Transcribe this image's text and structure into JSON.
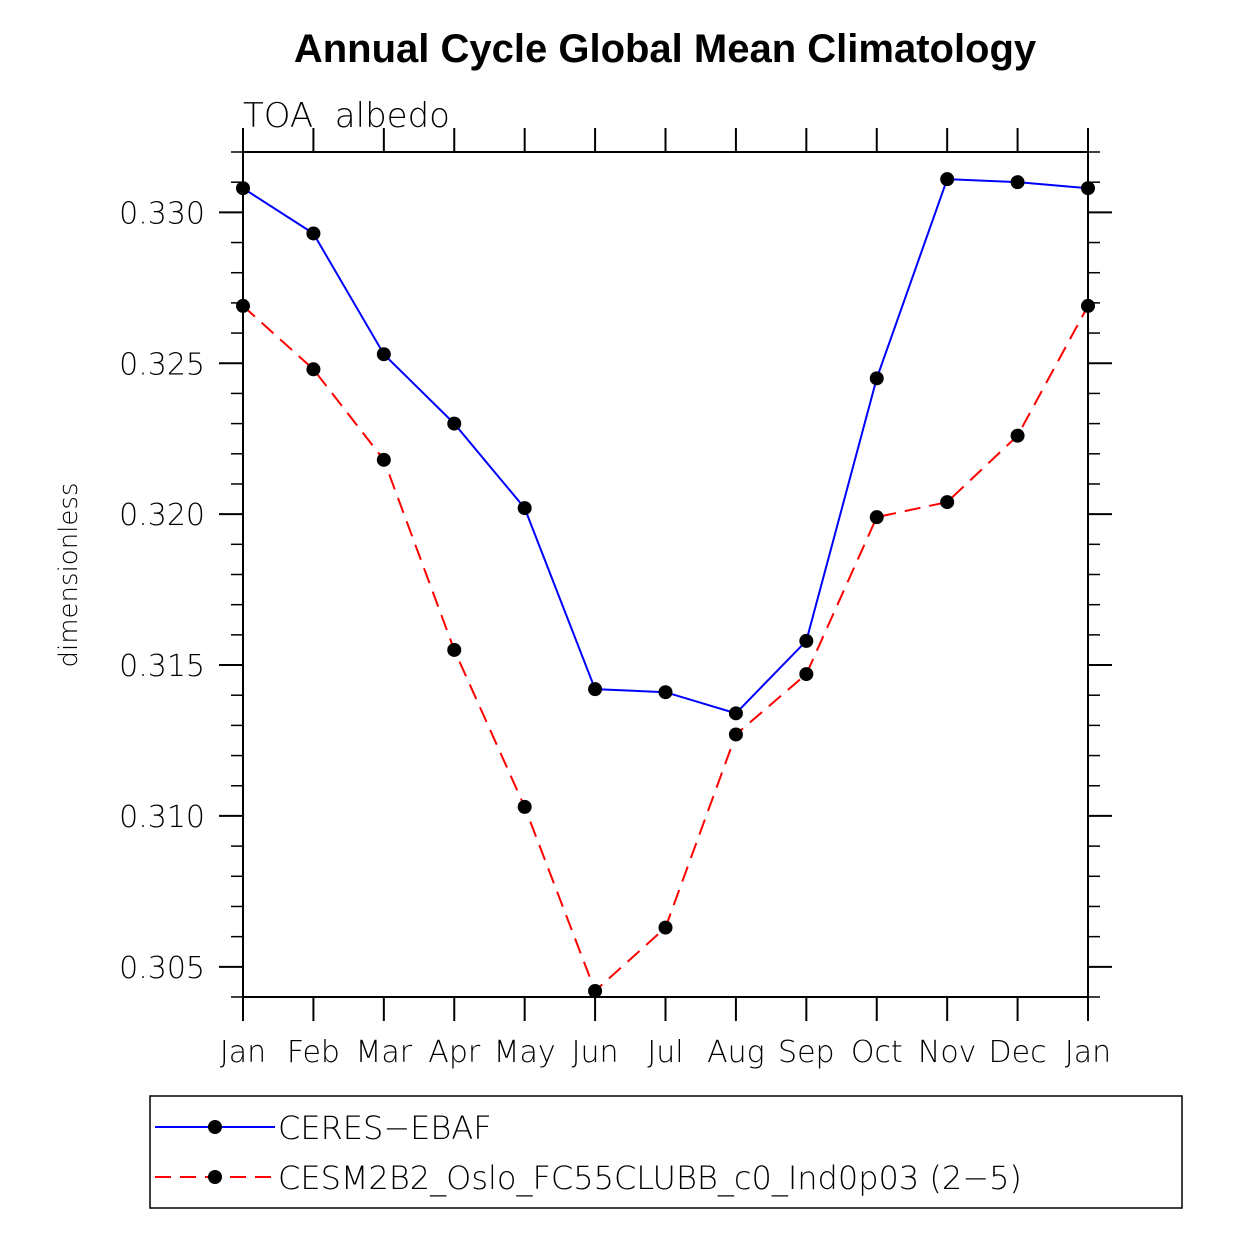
{
  "chart_data": {
    "type": "line",
    "title": "Annual Cycle Global Mean Climatology",
    "subtitle": "TOA  albedo",
    "xlabel": "",
    "ylabel": "dimensionless",
    "categories": [
      "Jan",
      "Feb",
      "Mar",
      "Apr",
      "May",
      "Jun",
      "Jul",
      "Aug",
      "Sep",
      "Oct",
      "Nov",
      "Dec",
      "Jan"
    ],
    "ylim": [
      0.304,
      0.332
    ],
    "yticks": [
      0.305,
      0.31,
      0.315,
      0.32,
      0.325,
      0.33
    ],
    "ytick_labels": [
      "0.305",
      "0.310",
      "0.315",
      "0.320",
      "0.325",
      "0.330"
    ],
    "grid": false,
    "legend_position": "bottom",
    "series": [
      {
        "name": "CERES−EBAF",
        "color": "#0000ff",
        "dash": "solid",
        "values": [
          0.3308,
          0.3293,
          0.3253,
          0.323,
          0.3202,
          0.3142,
          0.3141,
          0.3134,
          0.3158,
          0.3245,
          0.3311,
          0.331,
          0.3308
        ]
      },
      {
        "name": "CESM2B2_Oslo_FC55CLUBB_c0_Ind0p03 (2−5)",
        "color": "#ff0000",
        "dash": "dashed",
        "values": [
          0.3269,
          0.3248,
          0.3218,
          0.3155,
          0.3103,
          0.3042,
          0.3063,
          0.3127,
          0.3147,
          0.3199,
          0.3204,
          0.3226,
          0.3269
        ]
      }
    ]
  }
}
